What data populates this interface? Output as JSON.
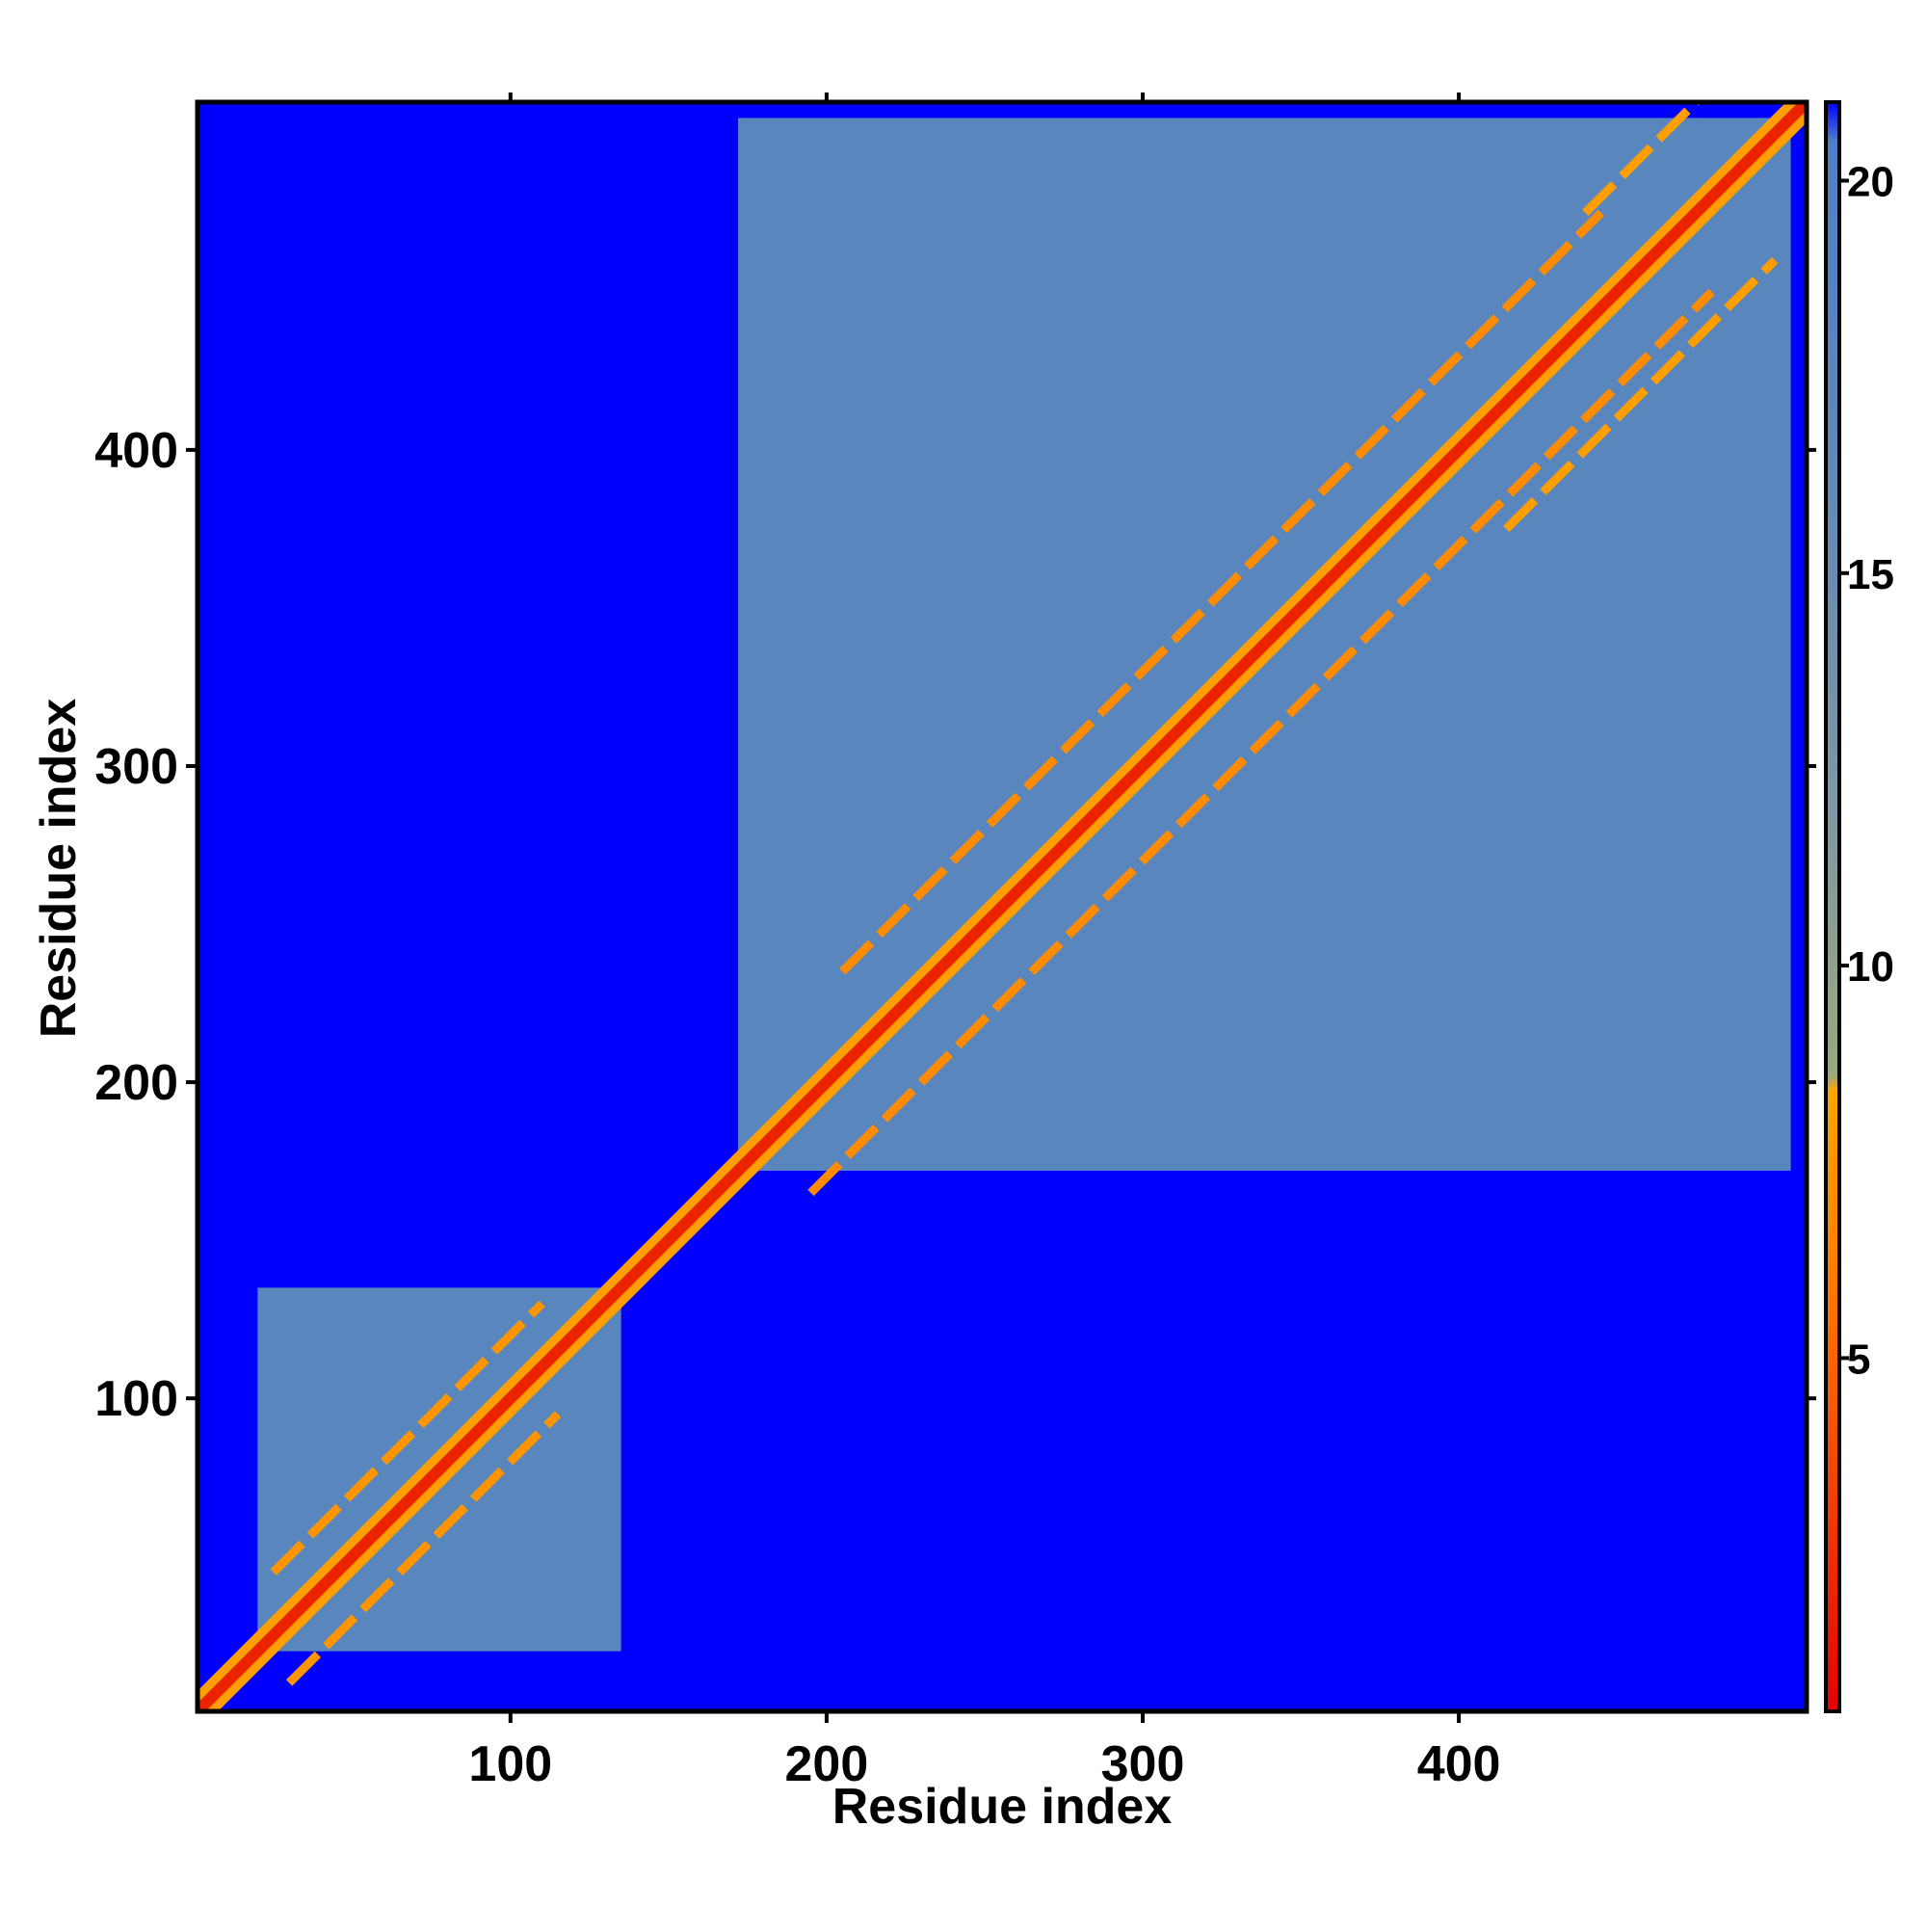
{
  "chart_data": {
    "type": "heatmap",
    "xlabel": "Residue index",
    "ylabel": "Residue index",
    "xlim": [
      1,
      510
    ],
    "ylim": [
      1,
      510
    ],
    "x_ticks": [
      100,
      200,
      300,
      400
    ],
    "y_ticks": [
      100,
      200,
      300,
      400
    ],
    "colorbar": {
      "range": [
        0.5,
        21
      ],
      "ticks": [
        5,
        10,
        15,
        20
      ],
      "stops": [
        {
          "value": 0.5,
          "color": "#e60000"
        },
        {
          "value": 3,
          "color": "#f03a00"
        },
        {
          "value": 6,
          "color": "#ff7a00"
        },
        {
          "value": 8.4,
          "color": "#ffa500"
        },
        {
          "value": 8.6,
          "color": "#9aa87c"
        },
        {
          "value": 12,
          "color": "#7e98a4"
        },
        {
          "value": 17,
          "color": "#5b87bb"
        },
        {
          "value": 20.5,
          "color": "#4e7fc8"
        },
        {
          "value": 21,
          "color": "#0000ff"
        }
      ]
    },
    "background_value": 21,
    "domains": [
      {
        "name": "domain1",
        "start": 20,
        "end": 135,
        "value": 17.5
      },
      {
        "name": "domain2",
        "start": 172,
        "end": 505,
        "value": 17.5
      }
    ],
    "diagonal_value": 2,
    "helix_bands": [
      {
        "x_start": 205,
        "x_end": 445,
        "offset": 30,
        "value": 7
      },
      {
        "x_start": 195,
        "x_end": 480,
        "offset": -30,
        "value": 7
      },
      {
        "x_start": 25,
        "x_end": 110,
        "offset": 20,
        "value": 7.5
      },
      {
        "x_start": 30,
        "x_end": 115,
        "offset": -20,
        "value": 7.5
      },
      {
        "x_start": 440,
        "x_end": 500,
        "offset": 35,
        "value": 8
      },
      {
        "x_start": 415,
        "x_end": 500,
        "offset": -40,
        "value": 8
      }
    ]
  }
}
